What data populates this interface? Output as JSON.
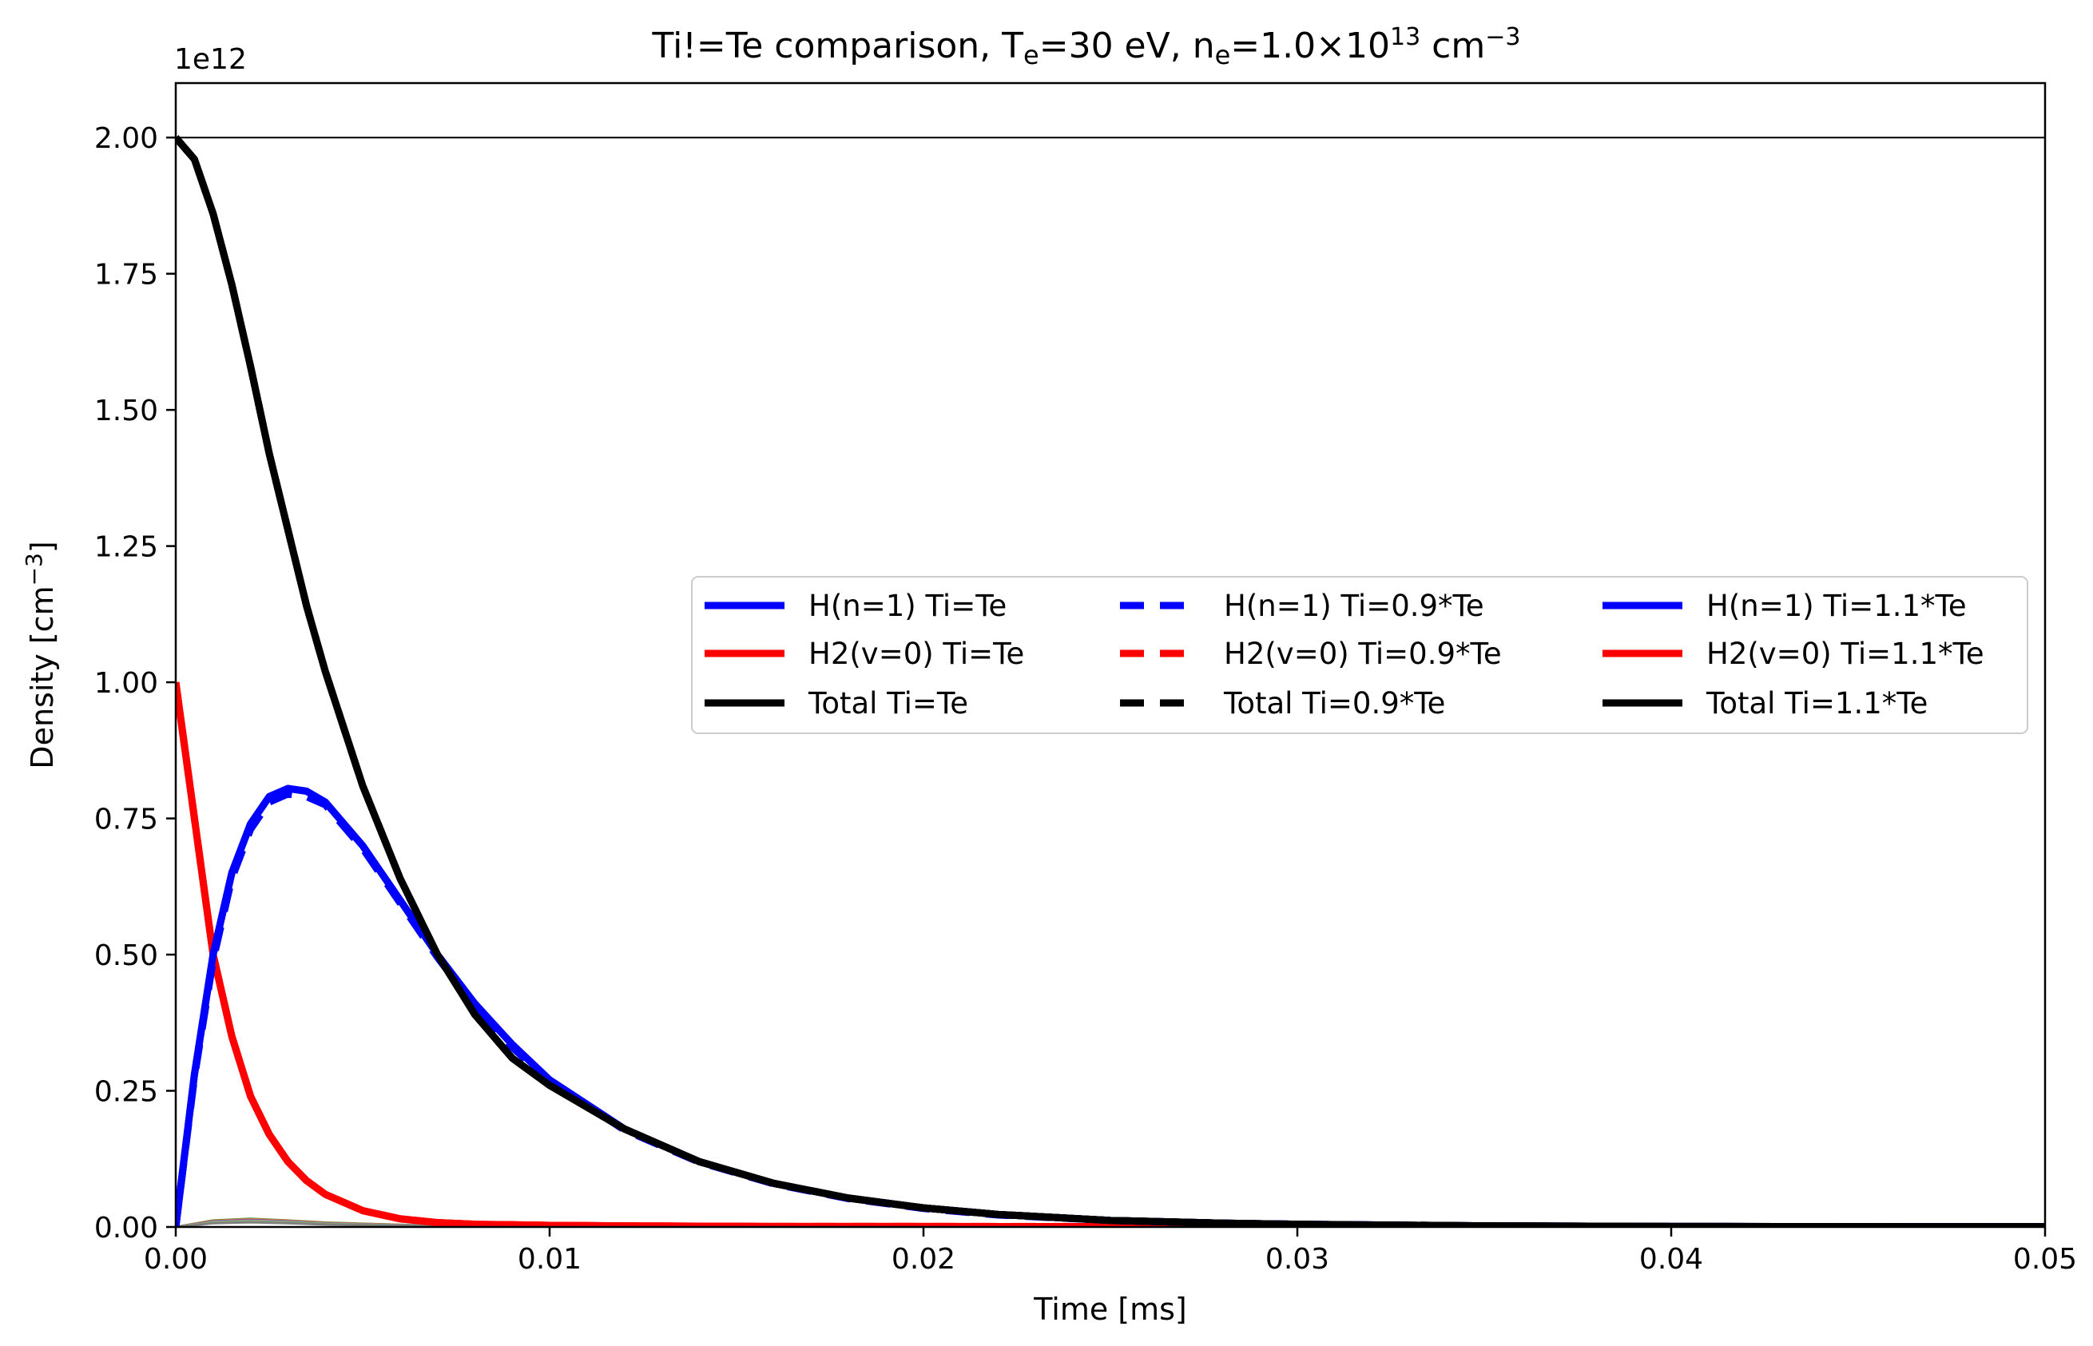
{
  "chart_data": {
    "type": "line",
    "title": {
      "prefix": "Ti!=Te comparison,  T",
      "sub1": "e",
      "mid1": "=30 eV, n",
      "sub2": "e",
      "mid2": "=1.0×10",
      "sup1": "13",
      "mid3": " cm",
      "sup2": "−3"
    },
    "xlabel": "Time [ms]",
    "ylabel": {
      "text": "Density [cm",
      "sup": "−3",
      "close": "]"
    },
    "y_offset_label": "1e12",
    "xlim": [
      0,
      0.05
    ],
    "ylim": [
      0,
      2.1
    ],
    "x_ticks": [
      0,
      0.01,
      0.02,
      0.03,
      0.04,
      0.05
    ],
    "x_tick_labels": [
      "0.00",
      "0.01",
      "0.02",
      "0.03",
      "0.04",
      "0.05"
    ],
    "y_ticks": [
      0,
      0.25,
      0.5,
      0.75,
      1.0,
      1.25,
      1.5,
      1.75,
      2.0
    ],
    "y_tick_labels": [
      "0.00",
      "0.25",
      "0.50",
      "0.75",
      "1.00",
      "1.25",
      "1.50",
      "1.75",
      "2.00"
    ],
    "reference_line_y": 2.0,
    "grid": false,
    "legend_position": "center-right",
    "legend_columns": 3,
    "x": [
      0,
      0.0005,
      0.001,
      0.0015,
      0.002,
      0.0025,
      0.003,
      0.0035,
      0.004,
      0.005,
      0.006,
      0.007,
      0.008,
      0.009,
      0.01,
      0.012,
      0.014,
      0.016,
      0.018,
      0.02,
      0.022,
      0.025,
      0.028,
      0.03,
      0.035,
      0.04,
      0.045,
      0.05
    ],
    "series": [
      {
        "name": "H(n=1) Ti=Te",
        "color": "#0000ff",
        "dash": "solid",
        "values": [
          0.0,
          0.28,
          0.5,
          0.65,
          0.74,
          0.79,
          0.805,
          0.8,
          0.78,
          0.7,
          0.6,
          0.5,
          0.41,
          0.335,
          0.27,
          0.18,
          0.12,
          0.08,
          0.053,
          0.035,
          0.023,
          0.012,
          0.007,
          0.005,
          0.002,
          0.001,
          0.0005,
          0.0003
        ]
      },
      {
        "name": "H2(v=0) Ti=Te",
        "color": "#ff0000",
        "dash": "solid",
        "values": [
          1.0,
          0.75,
          0.5,
          0.35,
          0.24,
          0.17,
          0.12,
          0.085,
          0.06,
          0.03,
          0.015,
          0.008,
          0.005,
          0.004,
          0.003,
          0.002,
          0.0015,
          0.001,
          0.001,
          0.001,
          0.0008,
          0.0007,
          0.0006,
          0.0005,
          0.0004,
          0.0003,
          0.0003,
          0.0003
        ]
      },
      {
        "name": "Total Ti=Te",
        "color": "#000000",
        "dash": "solid",
        "values": [
          2.0,
          1.96,
          1.86,
          1.73,
          1.58,
          1.42,
          1.28,
          1.14,
          1.02,
          0.81,
          0.64,
          0.5,
          0.39,
          0.31,
          0.26,
          0.18,
          0.12,
          0.08,
          0.053,
          0.035,
          0.023,
          0.012,
          0.007,
          0.005,
          0.002,
          0.001,
          0.0005,
          0.0003
        ]
      },
      {
        "name": "H(n=1) Ti=0.9*Te",
        "color": "#0000ff",
        "dash": "dashed",
        "values": [
          0.0,
          0.275,
          0.49,
          0.64,
          0.73,
          0.78,
          0.795,
          0.79,
          0.775,
          0.695,
          0.595,
          0.495,
          0.405,
          0.33,
          0.267,
          0.178,
          0.119,
          0.079,
          0.052,
          0.034,
          0.022,
          0.012,
          0.007,
          0.005,
          0.002,
          0.001,
          0.0005,
          0.0003
        ]
      },
      {
        "name": "H2(v=0) Ti=0.9*Te",
        "color": "#ff0000",
        "dash": "dashed",
        "values": [
          1.0,
          0.75,
          0.5,
          0.35,
          0.24,
          0.17,
          0.12,
          0.085,
          0.06,
          0.03,
          0.015,
          0.008,
          0.005,
          0.004,
          0.003,
          0.002,
          0.0015,
          0.001,
          0.001,
          0.001,
          0.0009,
          0.0008,
          0.0007,
          0.0006,
          0.0005,
          0.0005,
          0.0005,
          0.0005
        ]
      },
      {
        "name": "Total Ti=0.9*Te",
        "color": "#000000",
        "dash": "dashed",
        "values": [
          2.0,
          1.96,
          1.86,
          1.73,
          1.58,
          1.42,
          1.28,
          1.14,
          1.02,
          0.81,
          0.64,
          0.5,
          0.39,
          0.31,
          0.26,
          0.18,
          0.12,
          0.08,
          0.053,
          0.035,
          0.023,
          0.012,
          0.007,
          0.005,
          0.002,
          0.001,
          0.0005,
          0.0003
        ]
      },
      {
        "name": "H(n=1) Ti=1.1*Te",
        "color": "#0000ff",
        "dash": "solid",
        "values": [
          0.0,
          0.28,
          0.5,
          0.65,
          0.74,
          0.79,
          0.805,
          0.8,
          0.78,
          0.7,
          0.6,
          0.5,
          0.41,
          0.335,
          0.27,
          0.18,
          0.12,
          0.08,
          0.053,
          0.035,
          0.023,
          0.012,
          0.007,
          0.005,
          0.002,
          0.001,
          0.0005,
          0.0003
        ]
      },
      {
        "name": "H2(v=0) Ti=1.1*Te",
        "color": "#ff0000",
        "dash": "solid",
        "values": [
          1.0,
          0.75,
          0.5,
          0.35,
          0.24,
          0.17,
          0.12,
          0.085,
          0.06,
          0.03,
          0.015,
          0.008,
          0.005,
          0.004,
          0.003,
          0.002,
          0.0015,
          0.001,
          0.001,
          0.001,
          0.0008,
          0.0007,
          0.0006,
          0.0005,
          0.0004,
          0.0003,
          0.0003,
          0.0003
        ]
      },
      {
        "name": "Total Ti=1.1*Te",
        "color": "#000000",
        "dash": "solid",
        "values": [
          2.0,
          1.96,
          1.86,
          1.73,
          1.58,
          1.42,
          1.28,
          1.14,
          1.02,
          0.81,
          0.64,
          0.5,
          0.39,
          0.31,
          0.26,
          0.18,
          0.12,
          0.08,
          0.053,
          0.035,
          0.023,
          0.012,
          0.007,
          0.005,
          0.002,
          0.001,
          0.0005,
          0.0003
        ]
      }
    ],
    "minor_curves": {
      "colors": [
        "#2ca02c",
        "#ff7f0e",
        "#9467bd",
        "#8c564b",
        "#e377c2",
        "#17becf",
        "#bcbd22",
        "#7f7f7f"
      ],
      "x": [
        0,
        0.001,
        0.002,
        0.003,
        0.004,
        0.006,
        0.008,
        0.01,
        0.015
      ],
      "values": [
        0.0,
        0.012,
        0.015,
        0.012,
        0.008,
        0.004,
        0.002,
        0.001,
        0.0
      ]
    }
  }
}
